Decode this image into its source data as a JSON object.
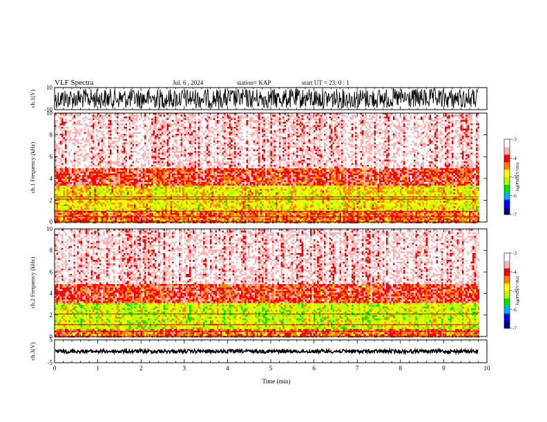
{
  "header": {
    "title": "VLF Spectra",
    "date": "Jul. 6 , 2024",
    "station": "station= KAP",
    "start": "start  UT =  23: 0  : 1"
  },
  "chart_data": [
    {
      "type": "line",
      "panel": "waveform-ch1",
      "ylabel": "ch.1(V)",
      "ylim": [
        -10,
        10
      ],
      "yticks": [
        "10",
        "-10"
      ],
      "xlim": [
        0,
        10
      ],
      "note_trace": "dense oscillating black trace spanning about -8 to 8 V from 0 to 9.8 min"
    },
    {
      "type": "heatmap",
      "panel": "spectrogram-ch1",
      "ylabel": "ch.1 Frequency (kHz)",
      "ylim": [
        0,
        10
      ],
      "yticks": [
        "0",
        "2",
        "4",
        "6",
        "8",
        "10"
      ],
      "xlim": [
        0,
        10
      ],
      "data_end_min": 9.8,
      "bands": [
        {
          "from_khz": 0,
          "to_khz": 1.0,
          "level": -4.3
        },
        {
          "from_khz": 1.0,
          "to_khz": 3.5,
          "level": -4.8
        },
        {
          "from_khz": 3.5,
          "to_khz": 5.0,
          "level": -4.0
        },
        {
          "from_khz": 5.0,
          "to_khz": 10.0,
          "level": -3.4
        }
      ],
      "lines_khz": [
        0.5,
        1.0,
        2.1,
        2.3
      ]
    },
    {
      "type": "heatmap",
      "panel": "spectrogram-ch2",
      "ylabel": "ch.2 Frequency (kHz)",
      "ylim": [
        0,
        10
      ],
      "yticks": [
        "0",
        "2",
        "4",
        "6",
        "8",
        "10"
      ],
      "xlim": [
        0,
        10
      ],
      "data_end_min": 9.8,
      "bands": [
        {
          "from_khz": 0,
          "to_khz": 0.8,
          "level": -4.3
        },
        {
          "from_khz": 0.8,
          "to_khz": 3.2,
          "level": -5.0
        },
        {
          "from_khz": 3.2,
          "to_khz": 5.0,
          "level": -4.0
        },
        {
          "from_khz": 5.0,
          "to_khz": 10.0,
          "level": -3.4
        }
      ],
      "lines_khz": [
        0.5,
        1.1,
        2.1
      ]
    },
    {
      "type": "line",
      "panel": "waveform-ch3",
      "ylabel": "ch.3(V)",
      "ylim": [
        -5,
        5
      ],
      "yticks": [
        "5",
        "-5"
      ],
      "xlim": [
        0,
        10
      ],
      "xlabel": "Time  (min)",
      "xticks": [
        "0",
        "1",
        "2",
        "3",
        "4",
        "5",
        "6",
        "7",
        "8",
        "9",
        "10"
      ],
      "note_trace": "flat black band near 0 V from 0 to 9.8 min"
    }
  ],
  "colorbar": {
    "label": "log(PSD)(V²/Hz)",
    "ticks": [
      "-3",
      "-4",
      "-5",
      "-6",
      "-7"
    ],
    "range": [
      -7,
      -3
    ],
    "colors": [
      "#000080",
      "#0000ff",
      "#00b0ff",
      "#00e000",
      "#b0ff00",
      "#ffff00",
      "#ff8000",
      "#ff0000",
      "#ffb0b0",
      "#ffffff"
    ]
  }
}
